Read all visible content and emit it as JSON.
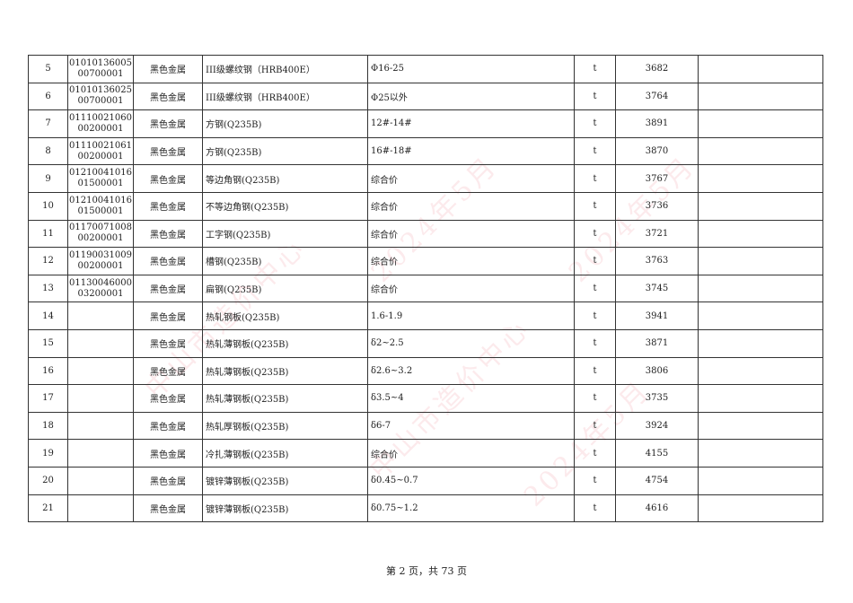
{
  "watermark": {
    "text_org": "中山市造价中心",
    "text_date": "2024年5月",
    "color": "#eb5a6e"
  },
  "table": {
    "rows": [
      {
        "no": "5",
        "code": [
          "01010136005",
          "00700001"
        ],
        "category": "黑色金属",
        "name": "III级螺纹钢（HRB400E）",
        "spec": "Φ16-25",
        "unit": "t",
        "price": "3682",
        "remark": ""
      },
      {
        "no": "6",
        "code": [
          "01010136025",
          "00700001"
        ],
        "category": "黑色金属",
        "name": "III级螺纹钢（HRB400E）",
        "spec": "Φ25以外",
        "unit": "t",
        "price": "3764",
        "remark": ""
      },
      {
        "no": "7",
        "code": [
          "01110021060",
          "00200001"
        ],
        "category": "黑色金属",
        "name": "方钢(Q235B)",
        "spec": "12#-14#",
        "unit": "t",
        "price": "3891",
        "remark": ""
      },
      {
        "no": "8",
        "code": [
          "01110021061",
          "00200001"
        ],
        "category": "黑色金属",
        "name": "方钢(Q235B)",
        "spec": "16#-18#",
        "unit": "t",
        "price": "3870",
        "remark": ""
      },
      {
        "no": "9",
        "code": [
          "01210041016",
          "01500001"
        ],
        "category": "黑色金属",
        "name": "等边角钢(Q235B)",
        "spec": "综合价",
        "unit": "t",
        "price": "3767",
        "remark": ""
      },
      {
        "no": "10",
        "code": [
          "01210041016",
          "01500001"
        ],
        "category": "黑色金属",
        "name": "不等边角钢(Q235B)",
        "spec": "综合价",
        "unit": "t",
        "price": "3736",
        "remark": ""
      },
      {
        "no": "11",
        "code": [
          "01170071008",
          "00200001"
        ],
        "category": "黑色金属",
        "name": "工字钢(Q235B)",
        "spec": "综合价",
        "unit": "t",
        "price": "3721",
        "remark": ""
      },
      {
        "no": "12",
        "code": [
          "01190031009",
          "00200001"
        ],
        "category": "黑色金属",
        "name": "槽钢(Q235B)",
        "spec": "综合价",
        "unit": "t",
        "price": "3763",
        "remark": ""
      },
      {
        "no": "13",
        "code": [
          "01130046000",
          "03200001"
        ],
        "category": "黑色金属",
        "name": "扁钢(Q235B)",
        "spec": "综合价",
        "unit": "t",
        "price": "3745",
        "remark": ""
      },
      {
        "no": "14",
        "code": [
          "",
          ""
        ],
        "category": "黑色金属",
        "name": "热轧钢板(Q235B)",
        "spec": "1.6-1.9",
        "unit": "t",
        "price": "3941",
        "remark": ""
      },
      {
        "no": "15",
        "code": [
          "",
          ""
        ],
        "category": "黑色金属",
        "name": "热轧薄钢板(Q235B)",
        "spec": "δ2~2.5",
        "unit": "t",
        "price": "3871",
        "remark": ""
      },
      {
        "no": "16",
        "code": [
          "",
          ""
        ],
        "category": "黑色金属",
        "name": "热轧薄钢板(Q235B)",
        "spec": "δ2.6~3.2",
        "unit": "t",
        "price": "3806",
        "remark": ""
      },
      {
        "no": "17",
        "code": [
          "",
          ""
        ],
        "category": "黑色金属",
        "name": "热轧薄钢板(Q235B)",
        "spec": "δ3.5~4",
        "unit": "t",
        "price": "3735",
        "remark": ""
      },
      {
        "no": "18",
        "code": [
          "",
          ""
        ],
        "category": "黑色金属",
        "name": "热轧厚钢板(Q235B)",
        "spec": "δ6-7",
        "unit": "t",
        "price": "3924",
        "remark": ""
      },
      {
        "no": "19",
        "code": [
          "",
          ""
        ],
        "category": "黑色金属",
        "name": "冷扎薄钢板(Q235B)",
        "spec": "综合价",
        "unit": "t",
        "price": "4155",
        "remark": ""
      },
      {
        "no": "20",
        "code": [
          "",
          ""
        ],
        "category": "黑色金属",
        "name": "镀锌薄钢板(Q235B)",
        "spec": "δ0.45~0.7",
        "unit": "t",
        "price": "4754",
        "remark": ""
      },
      {
        "no": "21",
        "code": [
          "",
          ""
        ],
        "category": "黑色金属",
        "name": "镀锌薄钢板(Q235B)",
        "spec": "δ0.75~1.2",
        "unit": "t",
        "price": "4616",
        "remark": ""
      }
    ]
  },
  "footer": {
    "page_text": "第 2 页，共 73 页"
  }
}
